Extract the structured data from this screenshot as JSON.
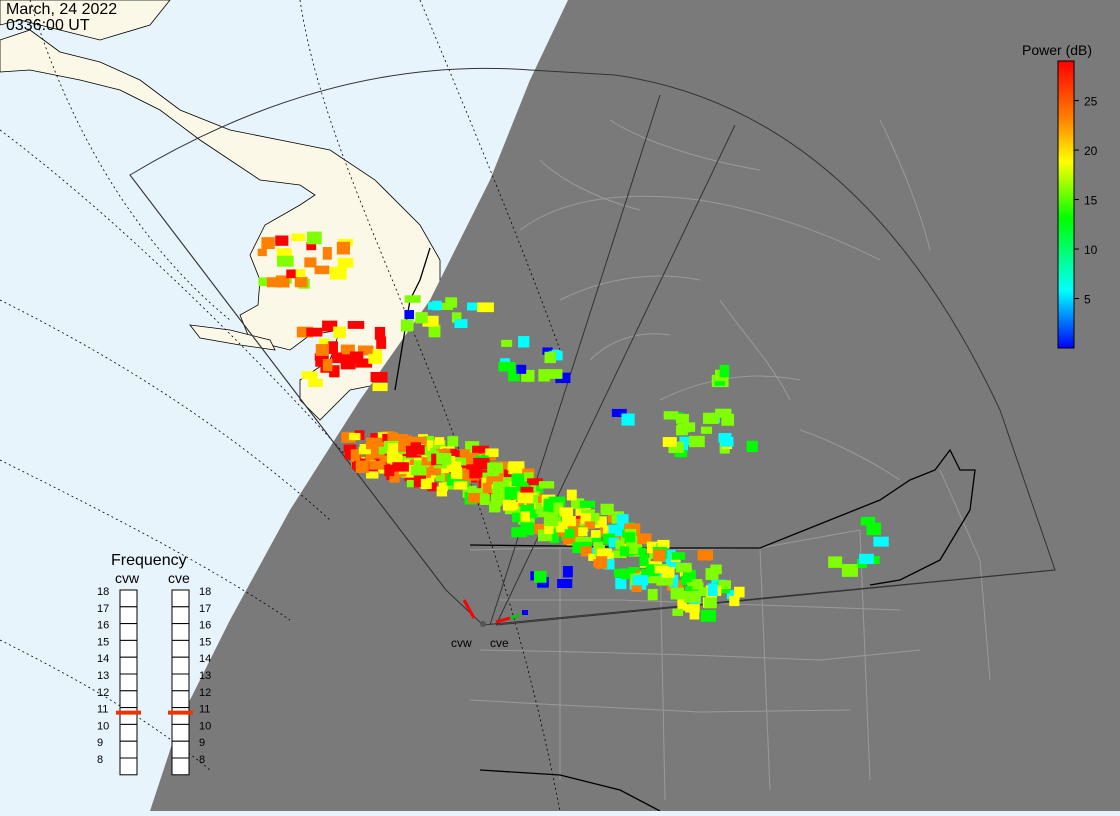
{
  "header": {
    "date": "March, 24 2022",
    "time": "0336:00 UT"
  },
  "colorbar": {
    "title": "Power (dB)",
    "tick_labels": [
      "25",
      "20",
      "15",
      "10",
      "5"
    ],
    "tick_values": [
      25,
      20,
      15,
      10,
      5
    ],
    "min": 0,
    "max": 29,
    "colors": [
      "#0000ff",
      "#00ffff",
      "#00ff00",
      "#ffff00",
      "#ff8000",
      "#ff0000"
    ]
  },
  "radars": [
    {
      "code": "cvw",
      "label": "cvw"
    },
    {
      "code": "cve",
      "label": "cve"
    }
  ],
  "frequency_panel": {
    "title": "Frequency",
    "columns": [
      "cvw",
      "cve"
    ],
    "levels": [
      "18",
      "17",
      "16",
      "15",
      "14",
      "13",
      "12",
      "11",
      "10",
      "9",
      "8"
    ],
    "selected_mhz": [
      10.7,
      10.7
    ],
    "marker_color": "#ee3300"
  },
  "map_colors": {
    "ocean": "#e8f4fc",
    "land_day": "#fbf8e8",
    "night_shade": "#7a7a7a",
    "border_night": "#9a9a9a",
    "coast_line": "#000000"
  }
}
